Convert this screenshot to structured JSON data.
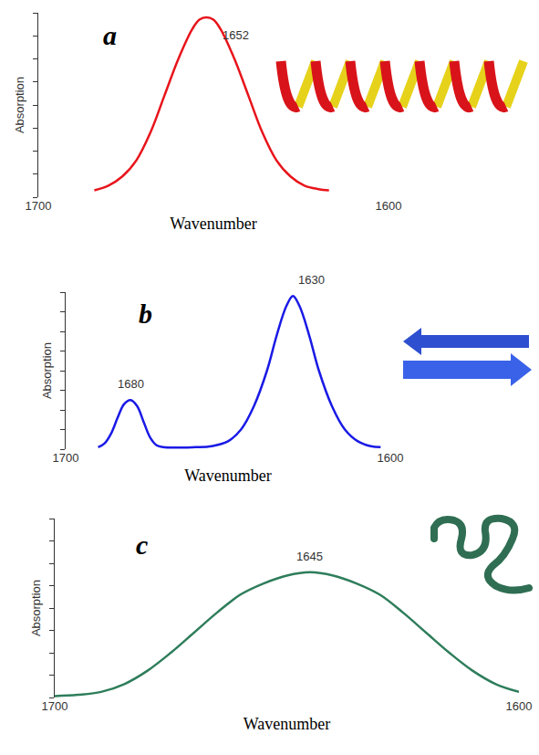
{
  "chart_data": [
    {
      "type": "line",
      "title": "a",
      "x_label": "Wavenumber",
      "y_label": "Absorption",
      "color": "#e8141b",
      "x": [
        1684,
        1680,
        1676,
        1672,
        1668,
        1664,
        1660,
        1656,
        1654,
        1652,
        1650,
        1648,
        1644,
        1640,
        1636,
        1632,
        1628,
        1624,
        1620,
        1617
      ],
      "values": [
        0.3,
        0.5,
        0.9,
        1.6,
        2.8,
        4.4,
        6.0,
        7.3,
        7.7,
        7.8,
        7.7,
        7.3,
        6.0,
        4.4,
        2.8,
        1.6,
        0.9,
        0.5,
        0.35,
        0.3
      ],
      "xlim": [
        1700,
        1600
      ],
      "xticks": [
        1700,
        1600
      ],
      "ylim": [
        0,
        8
      ],
      "yticks": [
        0,
        1,
        2,
        3,
        4,
        5,
        6,
        7,
        8
      ],
      "tick_labels": "x",
      "grid": false,
      "annotations": [
        {
          "text": "1652",
          "x": 1652,
          "y": 7.8
        }
      ]
    },
    {
      "type": "line",
      "title": "b",
      "x_label": "Wavenumber",
      "y_label": "Absorption",
      "color": "#1a1ae6",
      "x": [
        1690,
        1688,
        1686,
        1684,
        1682,
        1680,
        1678,
        1676,
        1674,
        1672,
        1670,
        1660,
        1655,
        1650,
        1646,
        1642,
        1638,
        1635,
        1632,
        1630,
        1628,
        1625,
        1622,
        1618,
        1614,
        1610,
        1606,
        1603
      ],
      "values": [
        0.1,
        0.3,
        0.8,
        1.6,
        2.3,
        2.5,
        2.2,
        1.4,
        0.6,
        0.2,
        0.1,
        0.1,
        0.15,
        0.4,
        1.0,
        2.2,
        4.0,
        5.8,
        7.3,
        7.8,
        7.3,
        5.8,
        4.0,
        2.2,
        1.0,
        0.4,
        0.15,
        0.1
      ],
      "xlim": [
        1700,
        1600
      ],
      "xticks": [
        1700,
        1600
      ],
      "ylim": [
        0,
        8
      ],
      "yticks": [
        0,
        1,
        2,
        3,
        4,
        5,
        6,
        7,
        8
      ],
      "tick_labels": "x",
      "grid": false,
      "annotations": [
        {
          "text": "1680",
          "x": 1680,
          "y": 2.5
        },
        {
          "text": "1630",
          "x": 1630,
          "y": 7.8
        }
      ]
    },
    {
      "type": "line",
      "title": "c",
      "x_label": "Wavenumber",
      "y_label": "Absorption",
      "color": "#2e7d5b",
      "x": [
        1700,
        1695,
        1690,
        1685,
        1680,
        1675,
        1670,
        1665,
        1660,
        1655,
        1650,
        1645,
        1640,
        1635,
        1630,
        1625,
        1620,
        1615,
        1610,
        1605,
        1600
      ],
      "values": [
        0.06,
        0.12,
        0.25,
        0.6,
        1.2,
        2.0,
        2.9,
        3.8,
        4.6,
        5.1,
        5.45,
        5.6,
        5.45,
        5.1,
        4.6,
        3.8,
        2.9,
        2.0,
        1.2,
        0.6,
        0.25
      ],
      "xlim": [
        1700,
        1600
      ],
      "xticks": [
        1700,
        1600
      ],
      "ylim": [
        0,
        8
      ],
      "yticks": [
        0,
        1,
        2,
        3,
        4,
        5,
        6,
        7,
        8
      ],
      "tick_labels": "x",
      "grid": false,
      "annotations": [
        {
          "text": "1645",
          "x": 1645,
          "y": 5.6
        }
      ]
    }
  ]
}
